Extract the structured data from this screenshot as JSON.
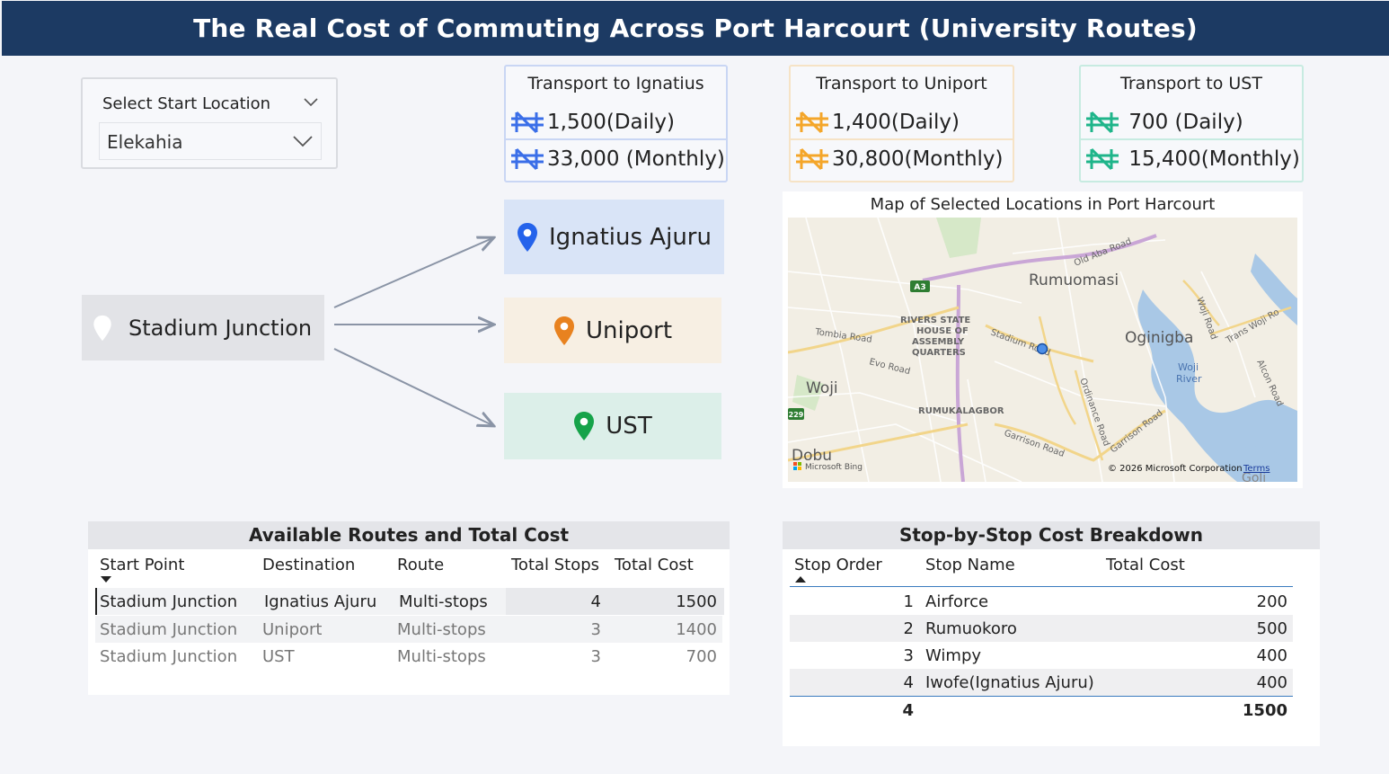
{
  "header": {
    "title": "The Real Cost of Commuting Across Port Harcourt (University Routes)"
  },
  "slicer": {
    "title": "Select Start Location",
    "value": "Elekahia"
  },
  "kpis": [
    {
      "title": "Transport to Ignatius",
      "daily": "1,500",
      "daily_suffix": "(Daily)",
      "monthly": "33,000",
      "monthly_suffix": "(Monthly)",
      "color": "#3a6ee8"
    },
    {
      "title": "Transport to Uniport",
      "daily": "1,400",
      "daily_suffix": "(Daily)",
      "monthly": "30,800",
      "monthly_suffix": "(Monthly)",
      "color": "#f4a62a"
    },
    {
      "title": "Transport to UST",
      "daily": "700",
      "daily_suffix": "(Daily)",
      "monthly": "15,400",
      "monthly_suffix": "(Monthly)",
      "color": "#1fb58a"
    }
  ],
  "flow": {
    "start": "Stadium Junction",
    "destinations": [
      {
        "label": "Ignatius Ajuru",
        "color": "#2563eb"
      },
      {
        "label": "Uniport",
        "color": "#e8821f"
      },
      {
        "label": "UST",
        "color": "#16a34a"
      }
    ]
  },
  "map": {
    "title": "Map of Selected Locations in Port Harcourt",
    "labels": {
      "rumuomasi": "Rumuomasi",
      "oginigba": "Oginigba",
      "woji": "Woji",
      "dobu": "Dobu",
      "woji_river_1": "Woji",
      "woji_river_2": "River",
      "rivers_1": "RIVERS STATE",
      "rivers_2": "HOUSE OF",
      "rivers_3": "ASSEMBLY",
      "rivers_4": "QUARTERS",
      "rumukalagbor": "RUMUKALAGBOR",
      "old_aba": "Old Aba Road",
      "tombia": "Tombia Road",
      "evo": "Evo Road",
      "stadium_road": "Stadium Road",
      "ordinance": "Ordinance Road",
      "garrison1": "Garrison Road",
      "garrison2": "Garrison Road",
      "woji_road": "Woji Road",
      "trans_woji": "Trans Woji Ro",
      "alcon": "Alcon Road",
      "a3": "A3",
      "r229": "229",
      "goli": "Goli"
    },
    "attribution": "Microsoft Bing",
    "copyright": "© 2026 Microsoft Corporation",
    "terms": "Terms"
  },
  "routes_table": {
    "title": "Available Routes and Total Cost",
    "headers": [
      "Start Point",
      "Destination",
      "Route",
      "Total Stops",
      "Total Cost"
    ],
    "rows": [
      [
        "Stadium Junction",
        "Ignatius Ajuru",
        "Multi-stops",
        "4",
        "1500"
      ],
      [
        "Stadium Junction",
        "Uniport",
        "Multi-stops",
        "3",
        "1400"
      ],
      [
        "Stadium Junction",
        "UST",
        "Multi-stops",
        "3",
        "700"
      ]
    ]
  },
  "stops_table": {
    "title": "Stop-by-Stop Cost Breakdown",
    "headers": [
      "Stop Order",
      "Stop Name",
      "Total Cost"
    ],
    "rows": [
      [
        "1",
        "Airforce",
        "200"
      ],
      [
        "2",
        "Rumuokoro",
        "500"
      ],
      [
        "3",
        "Wimpy",
        "400"
      ],
      [
        "4",
        "Iwofe(Ignatius Ajuru)",
        "400"
      ]
    ],
    "total": [
      "4",
      "1500"
    ]
  }
}
